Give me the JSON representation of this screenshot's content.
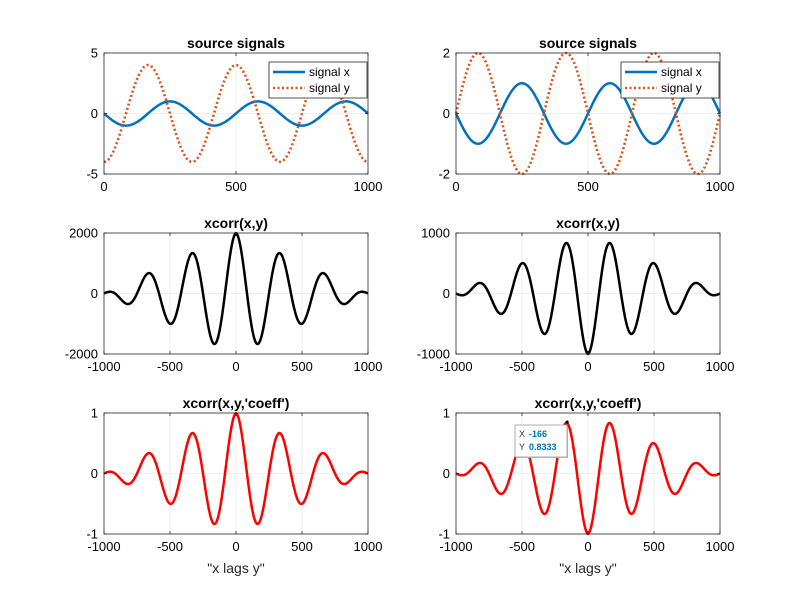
{
  "chart_data": [
    {
      "type": "line",
      "title": "source signals",
      "xlabel": "",
      "xlim": [
        0,
        1000
      ],
      "ylim": [
        -5,
        5
      ],
      "xticks": [
        0,
        500,
        1000
      ],
      "yticks": [
        -5,
        0,
        5
      ],
      "grid": true,
      "legend": "top-right",
      "series": [
        {
          "name": "signal x",
          "color": "#0072bd",
          "style": "solid",
          "amplitude": 1,
          "period": 333.3,
          "phase": "-sin"
        },
        {
          "name": "signal y",
          "color": "#d95319",
          "style": "dotted",
          "amplitude": 4,
          "period": 333.3,
          "phase": "-cos"
        }
      ]
    },
    {
      "type": "line",
      "title": "source signals",
      "xlabel": "",
      "xlim": [
        0,
        1000
      ],
      "ylim": [
        -2,
        2
      ],
      "xticks": [
        0,
        500,
        1000
      ],
      "yticks": [
        -2,
        0,
        2
      ],
      "grid": true,
      "legend": "top-right",
      "series": [
        {
          "name": "signal x",
          "color": "#0072bd",
          "style": "solid",
          "amplitude": 1,
          "period": 333.3,
          "phase": "-sin"
        },
        {
          "name": "signal y",
          "color": "#d95319",
          "style": "dotted",
          "amplitude": 2,
          "period": 333.3,
          "phase": "sin"
        }
      ]
    },
    {
      "type": "line",
      "title": "xcorr(x,y)",
      "xlabel": "",
      "xlim": [
        -1000,
        1000
      ],
      "ylim": [
        -2000,
        2000
      ],
      "xticks": [
        -1000,
        -500,
        0,
        500,
        1000
      ],
      "yticks": [
        -2000,
        0,
        2000
      ],
      "grid": true,
      "series": [
        {
          "name": "",
          "color": "#000000",
          "style": "solid",
          "peak": 2000,
          "period": 333.3,
          "kind": "cos"
        }
      ]
    },
    {
      "type": "line",
      "title": "xcorr(x,y)",
      "xlabel": "",
      "xlim": [
        -1000,
        1000
      ],
      "ylim": [
        -1000,
        1000
      ],
      "xticks": [
        -1000,
        -500,
        0,
        500,
        1000
      ],
      "yticks": [
        -1000,
        0,
        1000
      ],
      "grid": true,
      "series": [
        {
          "name": "",
          "color": "#000000",
          "style": "solid",
          "peak": 1000,
          "period": 333.3,
          "kind": "-cos"
        }
      ]
    },
    {
      "type": "line",
      "title": "xcorr(x,y,'coeff')",
      "xlabel": "\"x lags y\"",
      "xlim": [
        -1000,
        1000
      ],
      "ylim": [
        -1,
        1
      ],
      "xticks": [
        -1000,
        -500,
        0,
        500,
        1000
      ],
      "yticks": [
        -1,
        0,
        1
      ],
      "grid": true,
      "series": [
        {
          "name": "",
          "color": "#ff0000",
          "style": "solid",
          "peak": 1,
          "period": 333.3,
          "kind": "cos"
        }
      ]
    },
    {
      "type": "line",
      "title": "xcorr(x,y,'coeff')",
      "xlabel": "\"x lags y\"",
      "xlim": [
        -1000,
        1000
      ],
      "ylim": [
        -1,
        1
      ],
      "xticks": [
        -1000,
        -500,
        0,
        500,
        1000
      ],
      "yticks": [
        -1,
        0,
        1
      ],
      "grid": true,
      "series": [
        {
          "name": "",
          "color": "#ff0000",
          "style": "solid",
          "peak": 1,
          "period": 333.3,
          "kind": "-cos"
        }
      ],
      "datatip": {
        "x_label": "X",
        "x_value": "-166",
        "y_label": "Y",
        "y_value": "0.8333",
        "x": -166,
        "y": 0.8333
      }
    }
  ]
}
